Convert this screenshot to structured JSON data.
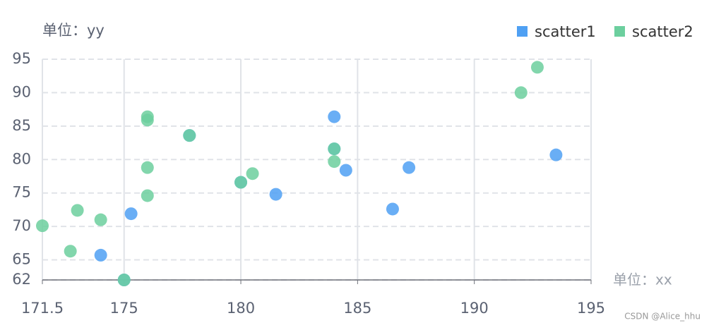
{
  "chart_data": {
    "type": "scatter",
    "x_label": "单位：xx",
    "y_label": "单位：yy",
    "xlim": [
      171.5,
      195
    ],
    "xticks": [
      171.5,
      175,
      180,
      185,
      190,
      195
    ],
    "ylim": [
      62,
      95
    ],
    "yticks": [
      62,
      65,
      70,
      75,
      80,
      85,
      90,
      95
    ],
    "grid": true,
    "legend": "top-right",
    "series": [
      {
        "name": "scatter1",
        "color": "#4fa0f3",
        "x": [
          174,
          175.3,
          175,
          177.8,
          180,
          181.5,
          184,
          184,
          184.5,
          186.5,
          187.2,
          193.5
        ],
        "values": [
          65.7,
          71.9,
          62,
          83.6,
          76.6,
          74.8,
          86.4,
          81.6,
          78.4,
          72.6,
          78.8,
          80.7
        ]
      },
      {
        "name": "scatter2",
        "color": "#6ccf9e",
        "x": [
          171.5,
          172.7,
          173,
          174,
          175,
          176,
          176,
          176,
          176,
          177.8,
          180,
          180.5,
          184,
          184,
          192,
          192.7
        ],
        "values": [
          70.1,
          66.3,
          72.4,
          71,
          62,
          86.4,
          85.9,
          78.8,
          74.6,
          83.6,
          76.6,
          77.9,
          81.6,
          79.7,
          90,
          93.8
        ]
      }
    ]
  },
  "watermark": "CSDN @Alice_hhu"
}
